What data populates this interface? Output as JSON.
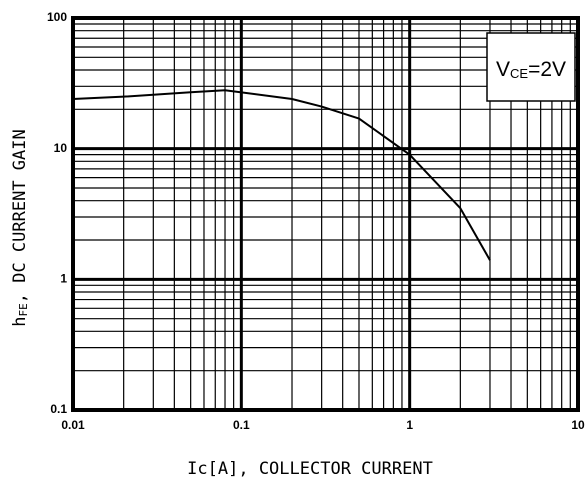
{
  "chart_data": {
    "type": "line",
    "log_x": true,
    "log_y": true,
    "grid": true,
    "color": "#000000",
    "x_label": {
      "main": "Ic[A], COLLECTOR CURRENT"
    },
    "y_label": {
      "main": "h",
      "sub": "FE",
      "rest": ", DC CURRENT GAIN"
    },
    "annotation": {
      "main": "V",
      "sub": "CE",
      "rest": "=2V"
    },
    "x": [
      0.01,
      0.02,
      0.05,
      0.08,
      0.2,
      0.3,
      0.5,
      1,
      2,
      3
    ],
    "values": [
      24,
      25,
      27,
      28,
      24,
      21,
      17,
      9,
      3.5,
      1.4
    ],
    "xlim": [
      0.01,
      10
    ],
    "ylim": [
      0.1,
      100
    ],
    "xticks": [
      0.01,
      0.1,
      1,
      10
    ],
    "yticks": [
      0.1,
      1,
      10,
      100
    ],
    "x_minor_ticks": [
      0.02,
      0.03,
      0.04,
      0.05,
      0.06,
      0.07,
      0.08,
      0.09,
      0.2,
      0.3,
      0.4,
      0.5,
      0.6,
      0.7,
      0.8,
      0.9,
      2,
      3,
      4,
      5,
      6,
      7,
      8,
      9
    ],
    "y_minor_ticks": [
      0.2,
      0.3,
      0.4,
      0.5,
      0.6,
      0.7,
      0.8,
      0.9,
      2,
      3,
      4,
      5,
      6,
      7,
      8,
      9,
      20,
      30,
      40,
      50,
      60,
      70,
      80,
      90
    ]
  }
}
